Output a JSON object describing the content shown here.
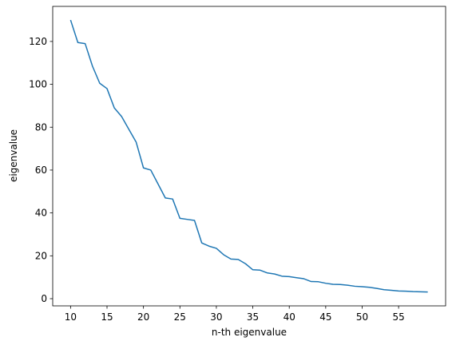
{
  "chart_data": {
    "type": "line",
    "x_label": "n-th eigenvalue",
    "y_label": "eigenvalue",
    "x": [
      10,
      11,
      12,
      13,
      14,
      15,
      16,
      17,
      18,
      19,
      20,
      21,
      22,
      23,
      24,
      25,
      26,
      27,
      28,
      29,
      30,
      31,
      32,
      33,
      34,
      35,
      36,
      37,
      38,
      39,
      40,
      41,
      42,
      43,
      44,
      45,
      46,
      47,
      48,
      49,
      50,
      51,
      52,
      53,
      54,
      55,
      56,
      57,
      58,
      59
    ],
    "series": [
      {
        "color": "#1f77b4",
        "values": [
          130,
          119.5,
          119,
          108.5,
          100.5,
          98,
          89,
          85,
          79,
          73,
          61,
          60,
          53.5,
          47,
          46.5,
          37.5,
          37,
          36.5,
          26,
          24.5,
          23.5,
          20.5,
          18.5,
          18.3,
          16.3,
          13.5,
          13.3,
          12,
          11.5,
          10.5,
          10.3,
          9.8,
          9.3,
          8,
          7.9,
          7.2,
          6.7,
          6.6,
          6.3,
          5.8,
          5.6,
          5.3,
          4.8,
          4.2,
          3.9,
          3.6,
          3.5,
          3.3,
          3.2,
          3.1
        ]
      }
    ],
    "xlim": [
      7.55,
      61.45
    ],
    "ylim": [
      -3.35,
      136.35
    ],
    "xticks": [
      10,
      15,
      20,
      25,
      30,
      35,
      40,
      45,
      50,
      55
    ],
    "yticks": [
      0,
      20,
      40,
      60,
      80,
      100,
      120
    ],
    "grid": false
  }
}
